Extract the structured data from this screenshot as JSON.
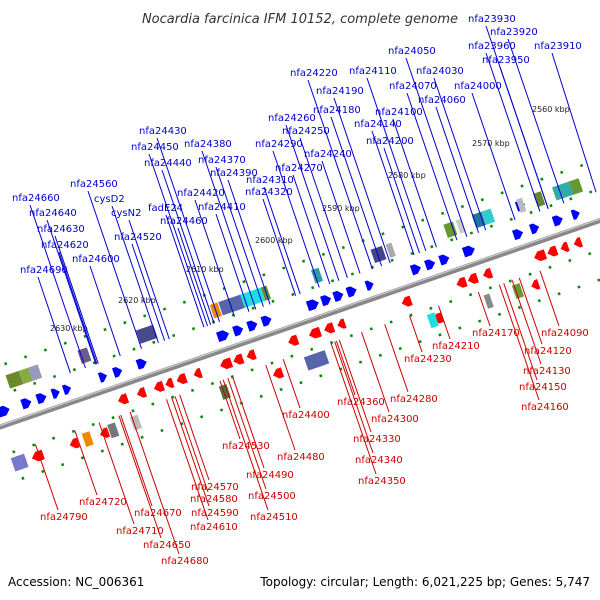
{
  "title": "Nocardia farcinica IFM 10152, complete genome",
  "footer": {
    "accession": "Accession: NC_006361",
    "details": "Topology: circular; Length: 6,021,225 bp; Genes: 5,747"
  },
  "colors": {
    "forward": "#0000cc",
    "reverse": "#cc0000",
    "forward_arrow": "#0000ff",
    "reverse_arrow": "#ff0000",
    "backbone": "#888888",
    "tick": "#118811"
  },
  "kbp_markers": [
    "2560 kbp",
    "2570 kbp",
    "2580 kbp",
    "2590 kbp",
    "2600 kbp",
    "2610 kbp",
    "2620 kbp",
    "2630 kbp"
  ],
  "forward_genes": [
    "nfa23930",
    "nfa23920",
    "nfa23960",
    "nfa23910",
    "nfa24050",
    "nfa23950",
    "nfa24220",
    "nfa24110",
    "nfa24030",
    "nfa24070",
    "nfa24000",
    "nfa24190",
    "nfa24060",
    "nfa24180",
    "nfa24100",
    "nfa24260",
    "nfa24140",
    "nfa24250",
    "nfa24200",
    "nfa24430",
    "nfa24290",
    "nfa24240",
    "nfa24380",
    "nfa24450",
    "nfa24270",
    "nfa24370",
    "nfa24440",
    "nfa24390",
    "nfa24310",
    "nfa24560",
    "nfa24420",
    "nfa24320",
    "nfa24660",
    "cysD2",
    "fadE24",
    "nfa24410",
    "nfa24640",
    "cysN2",
    "nfa24460",
    "nfa24630",
    "nfa24520",
    "nfa24620",
    "nfa24600",
    "nfa24690"
  ],
  "reverse_genes": [
    "nfa24090",
    "nfa24170",
    "nfa24210",
    "nfa24120",
    "nfa24230",
    "nfa24130",
    "nfa24150",
    "nfa24280",
    "nfa24160",
    "nfa24360",
    "nfa24400",
    "nfa24300",
    "nfa24330",
    "nfa24340",
    "nfa24350",
    "nfa24530",
    "nfa24480",
    "nfa24490",
    "nfa24570",
    "nfa24500",
    "nfa24580",
    "nfa24720",
    "nfa24590",
    "nfa24510",
    "nfa24670",
    "nfa24610",
    "nfa24790",
    "nfa24710",
    "nfa24650",
    "nfa24680"
  ]
}
